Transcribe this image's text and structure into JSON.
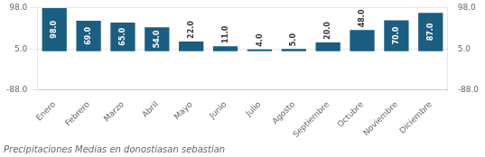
{
  "chart_data": {
    "type": "bar",
    "title": "Precipitaciones Medias en donostiasan sebastian",
    "categories": [
      "Enero",
      "Febrero",
      "Marzo",
      "Abril",
      "Mayo",
      "Junio",
      "Julio",
      "Agosto",
      "Septiembre",
      "Octubre",
      "Noviembre",
      "Diciembre"
    ],
    "values": [
      98.0,
      69.0,
      65.0,
      54.0,
      22.0,
      11.0,
      4.0,
      5.0,
      20.0,
      48.0,
      70.0,
      87.0
    ],
    "value_labels": [
      "98.0",
      "69.0",
      "65.0",
      "54.0",
      "22.0",
      "11.0",
      "4.0",
      "5.0",
      "20.0",
      "48.0",
      "70.0",
      "87.0"
    ],
    "data_labels": true,
    "color": "#1b5e82",
    "ylim": [
      -88,
      99
    ],
    "yticks": [
      {
        "value": -88,
        "label": "-88.0"
      },
      {
        "value": 5,
        "label": "5.0"
      },
      {
        "value": 98,
        "label": "98.0"
      }
    ],
    "y2lim": [
      -88,
      99
    ],
    "y2ticks": [
      {
        "value": -88,
        "label": "-88.0"
      },
      {
        "value": 5,
        "label": "5.0"
      },
      {
        "value": 98,
        "label": "98.0"
      }
    ],
    "grid": true
  }
}
